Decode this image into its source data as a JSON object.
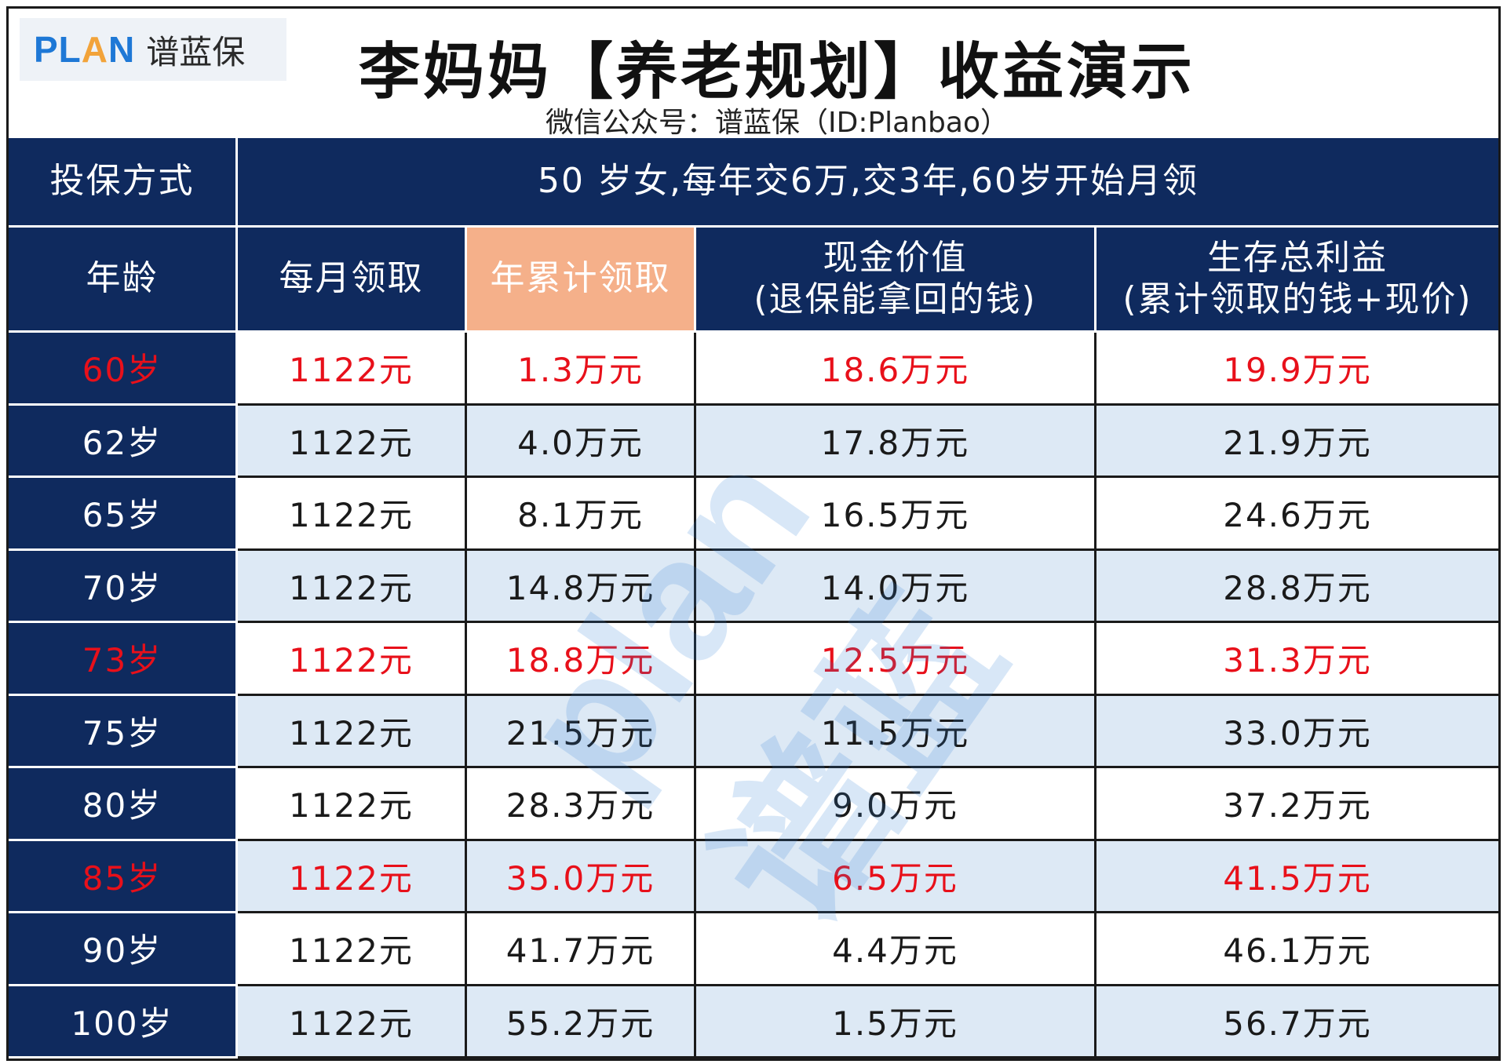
{
  "header": {
    "logo_word_pre": "PL",
    "logo_word_a": "A",
    "logo_word_post": "N",
    "logo_cn": "谱蓝保",
    "title": "李妈妈【养老规划】收益演示",
    "subtitle": "微信公众号：谱蓝保（ID:Planbao）"
  },
  "plan": {
    "label": "投保方式",
    "value": "50 岁女,每年交6万,交3年,60岁开始月领"
  },
  "columns": {
    "age": "年龄",
    "monthly": "每月领取",
    "cumulative": "年累计领取",
    "cash_value_line1": "现金价值",
    "cash_value_line2": "(退保能拿回的钱)",
    "total_line1": "生存总利益",
    "total_line2": "(累计领取的钱+现价)"
  },
  "colors": {
    "navy": "#0f2a5e",
    "highlight_header": "#f5b08a",
    "highlight_text": "#e8101a",
    "alt_row": "#dde9f5"
  },
  "rows": [
    {
      "age": "60岁",
      "monthly": "1122元",
      "cumulative": "1.3万元",
      "cash_value": "18.6万元",
      "total": "19.9万元",
      "highlight": true
    },
    {
      "age": "62岁",
      "monthly": "1122元",
      "cumulative": "4.0万元",
      "cash_value": "17.8万元",
      "total": "21.9万元",
      "highlight": false
    },
    {
      "age": "65岁",
      "monthly": "1122元",
      "cumulative": "8.1万元",
      "cash_value": "16.5万元",
      "total": "24.6万元",
      "highlight": false
    },
    {
      "age": "70岁",
      "monthly": "1122元",
      "cumulative": "14.8万元",
      "cash_value": "14.0万元",
      "total": "28.8万元",
      "highlight": false
    },
    {
      "age": "73岁",
      "monthly": "1122元",
      "cumulative": "18.8万元",
      "cash_value": "12.5万元",
      "total": "31.3万元",
      "highlight": true
    },
    {
      "age": "75岁",
      "monthly": "1122元",
      "cumulative": "21.5万元",
      "cash_value": "11.5万元",
      "total": "33.0万元",
      "highlight": false
    },
    {
      "age": "80岁",
      "monthly": "1122元",
      "cumulative": "28.3万元",
      "cash_value": "9.0万元",
      "total": "37.2万元",
      "highlight": false
    },
    {
      "age": "85岁",
      "monthly": "1122元",
      "cumulative": "35.0万元",
      "cash_value": "6.5万元",
      "total": "41.5万元",
      "highlight": true
    },
    {
      "age": "90岁",
      "monthly": "1122元",
      "cumulative": "41.7万元",
      "cash_value": "4.4万元",
      "total": "46.1万元",
      "highlight": false
    },
    {
      "age": "100岁",
      "monthly": "1122元",
      "cumulative": "55.2万元",
      "cash_value": "1.5万元",
      "total": "56.7万元",
      "highlight": false
    }
  ],
  "watermark": {
    "text": "plan谱蓝"
  }
}
